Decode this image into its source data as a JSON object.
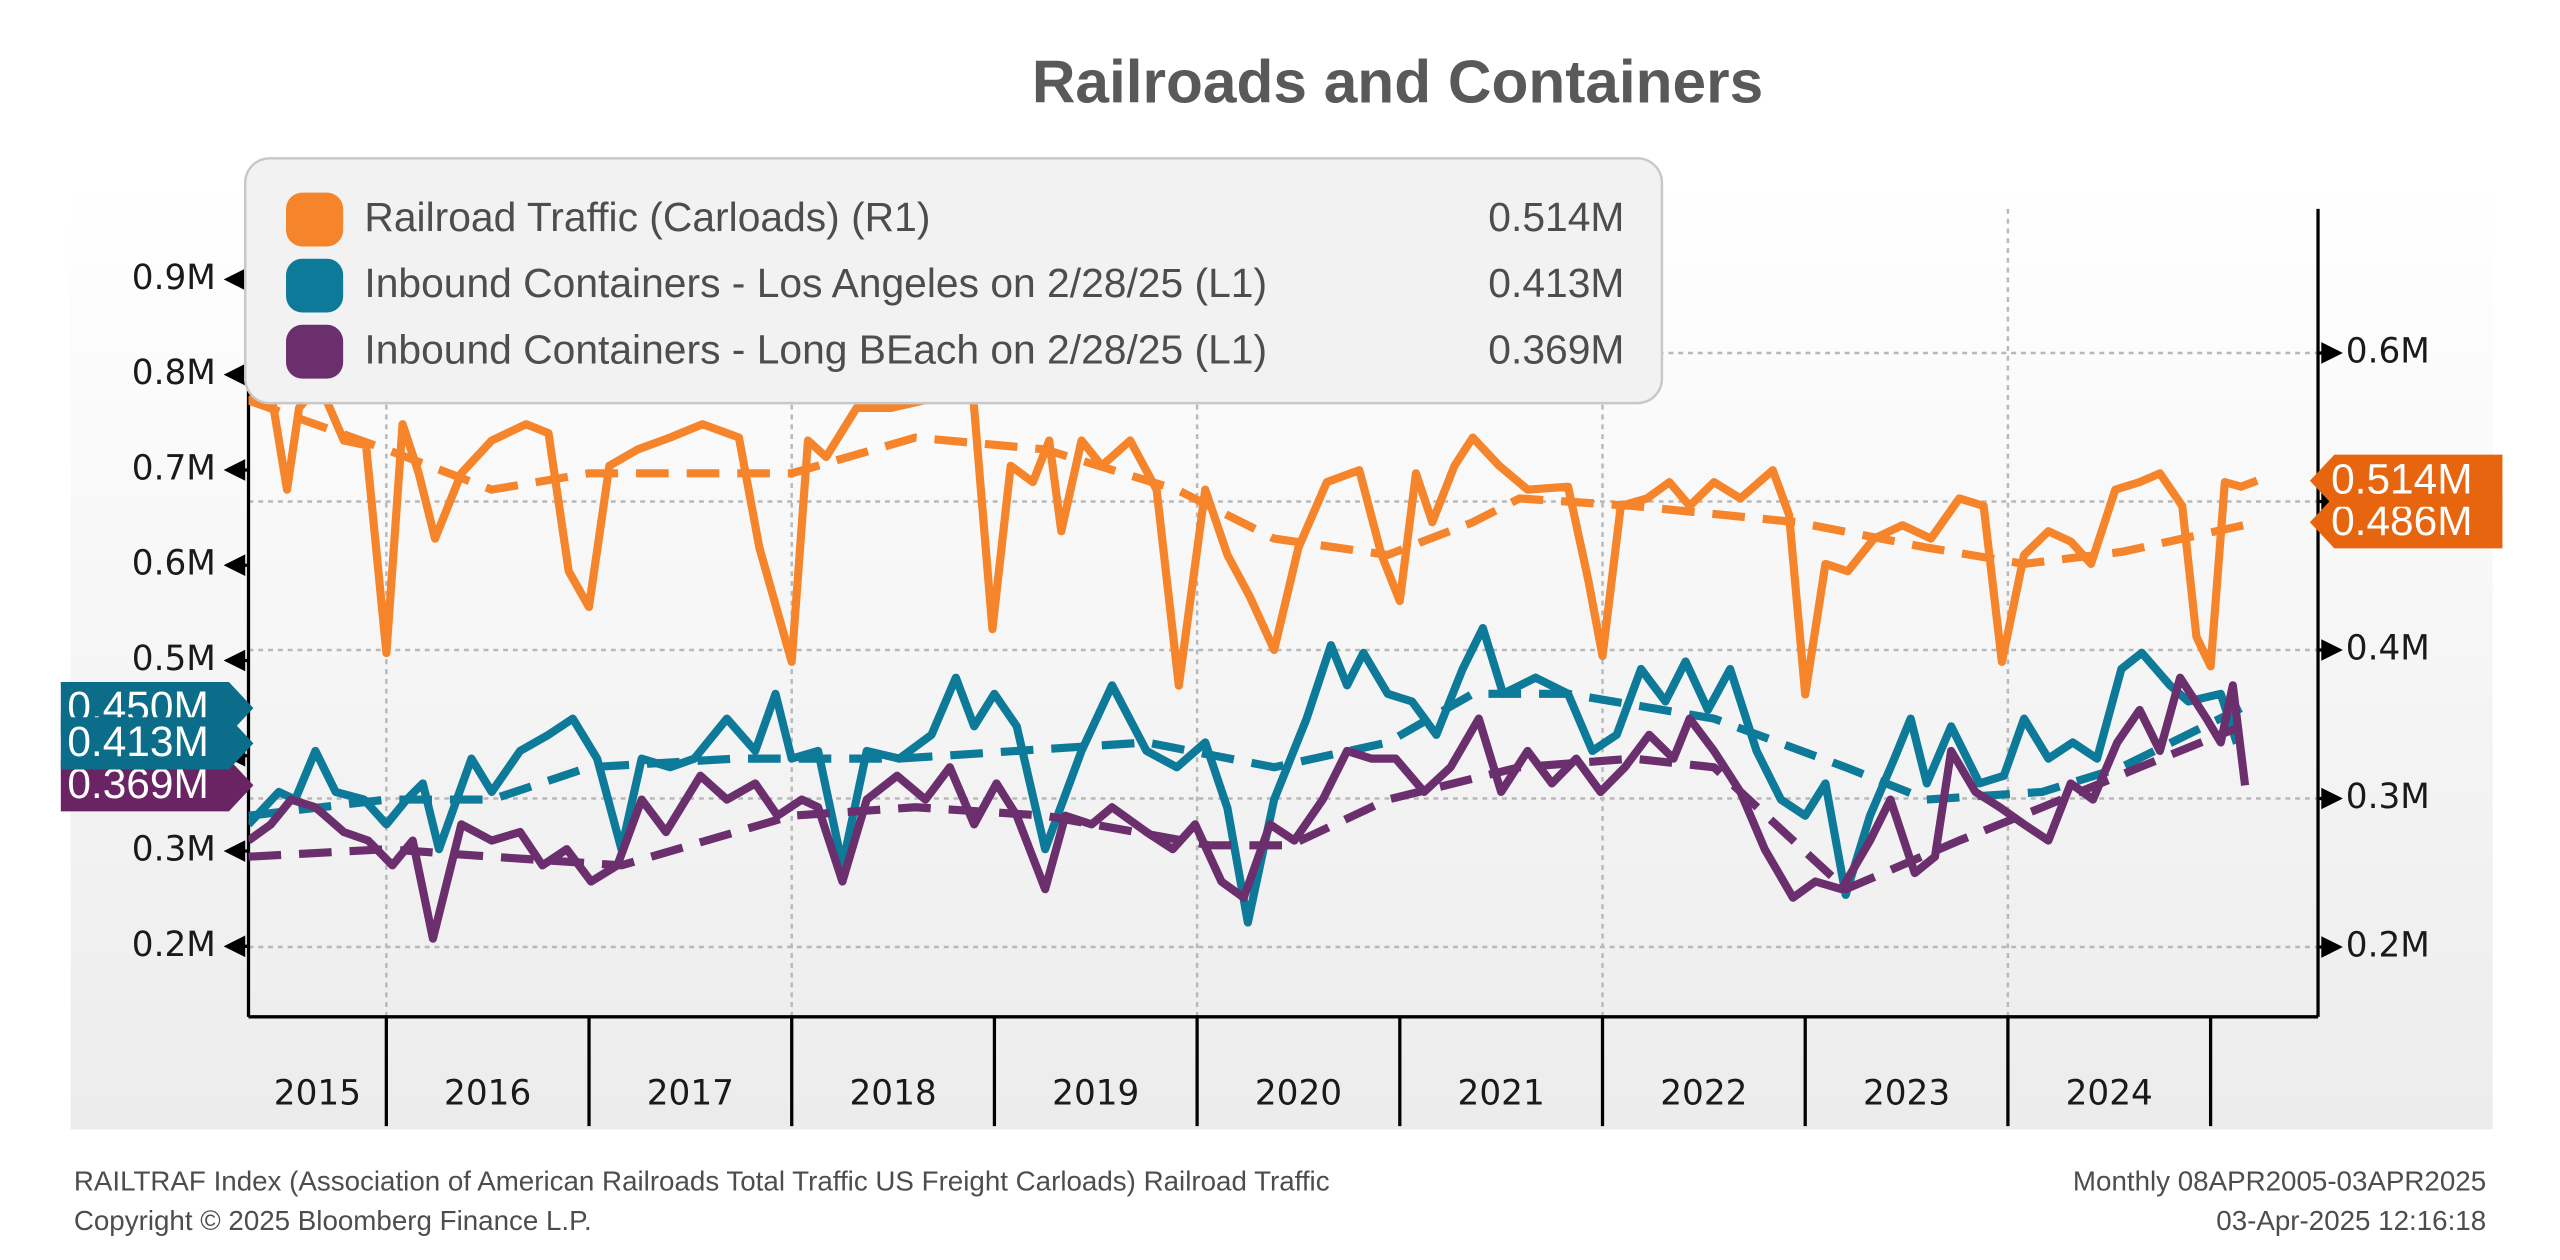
{
  "chart_data": {
    "type": "line",
    "title": "Railroads and Containers",
    "xlim": [
      2015.32,
      2025.53
    ],
    "xticks": [
      2016,
      2017,
      2018,
      2019,
      2020,
      2021,
      2022,
      2023,
      2024,
      2025
    ],
    "xgrid": [
      2016,
      2018,
      2020,
      2022,
      2024
    ],
    "year_labels": [
      2015,
      2016,
      2017,
      2018,
      2019,
      2020,
      2021,
      2022,
      2023,
      2024
    ],
    "ylim": [
      0.126,
      0.974
    ],
    "yticks": [
      {
        "value": 0.2,
        "label": "0.2M"
      },
      {
        "value": 0.3,
        "label": "0.3M"
      },
      {
        "value": 0.4,
        "label": "0.4M"
      },
      {
        "value": 0.5,
        "label": "0.5M"
      },
      {
        "value": 0.6,
        "label": "0.6M"
      },
      {
        "value": 0.7,
        "label": "0.7M"
      },
      {
        "value": 0.8,
        "label": "0.8M"
      },
      {
        "value": 0.9,
        "label": "0.9M"
      }
    ],
    "y2lim": [
      0.153,
      0.697
    ],
    "y2ticks": [
      {
        "value": 0.2,
        "label": "0.2M"
      },
      {
        "value": 0.3,
        "label": "0.3M"
      },
      {
        "value": 0.4,
        "label": "0.4M"
      },
      {
        "value": 0.5,
        "label": "0.5M"
      },
      {
        "value": 0.6,
        "label": "0.6M"
      }
    ],
    "grid": true,
    "legend": "upper left",
    "series": [
      {
        "name": "Railroad Traffic (Carloads) (R1)",
        "legend_value": "0.514M",
        "end_label": "0.514M",
        "label_color": "#e8650f",
        "color": "#f5842a",
        "axis": "y2",
        "dashed": false,
        "x": [
          2015.32,
          2015.43,
          2015.51,
          2015.57,
          2015.67,
          2015.79,
          2015.9,
          2016.0,
          2016.08,
          2016.16,
          2016.24,
          2016.37,
          2016.52,
          2016.69,
          2016.8,
          2016.9,
          2017.0,
          2017.1,
          2017.24,
          2017.4,
          2017.56,
          2017.74,
          2017.84,
          2018.0,
          2018.08,
          2018.17,
          2018.32,
          2018.49,
          2018.65,
          2018.89,
          2018.99,
          2019.08,
          2019.19,
          2019.27,
          2019.33,
          2019.43,
          2019.53,
          2019.67,
          2019.8,
          2019.91,
          2020.04,
          2020.15,
          2020.26,
          2020.38,
          2020.5,
          2020.64,
          2020.8,
          2020.91,
          2021.0,
          2021.08,
          2021.16,
          2021.27,
          2021.36,
          2021.49,
          2021.63,
          2021.83,
          2021.93,
          2022.0,
          2022.09,
          2022.22,
          2022.33,
          2022.43,
          2022.55,
          2022.68,
          2022.84,
          2022.92,
          2023.0,
          2023.1,
          2023.21,
          2023.34,
          2023.48,
          2023.62,
          2023.76,
          2023.88,
          2023.97,
          2024.08,
          2024.2,
          2024.31,
          2024.41,
          2024.53,
          2024.65,
          2024.75,
          2024.86,
          2024.93,
          2025.0,
          2025.07,
          2025.15,
          2025.23
        ],
        "values": [
          0.568,
          0.574,
          0.508,
          0.563,
          0.579,
          0.541,
          0.538,
          0.398,
          0.552,
          0.519,
          0.475,
          0.519,
          0.541,
          0.552,
          0.546,
          0.453,
          0.429,
          0.524,
          0.535,
          0.543,
          0.552,
          0.543,
          0.469,
          0.392,
          0.541,
          0.53,
          0.563,
          0.563,
          0.568,
          0.579,
          0.414,
          0.524,
          0.513,
          0.541,
          0.48,
          0.541,
          0.524,
          0.541,
          0.508,
          0.376,
          0.508,
          0.464,
          0.436,
          0.4,
          0.469,
          0.513,
          0.521,
          0.464,
          0.433,
          0.519,
          0.486,
          0.524,
          0.543,
          0.524,
          0.508,
          0.51,
          0.447,
          0.396,
          0.497,
          0.502,
          0.513,
          0.497,
          0.513,
          0.502,
          0.521,
          0.491,
          0.37,
          0.458,
          0.453,
          0.475,
          0.484,
          0.475,
          0.502,
          0.497,
          0.392,
          0.464,
          0.48,
          0.473,
          0.458,
          0.508,
          0.513,
          0.519,
          0.497,
          0.409,
          0.389,
          0.513,
          0.51,
          0.514
        ]
      },
      {
        "end_label": "0.486M",
        "label_color": "#e8650f",
        "color": "#f5842a",
        "axis": "y2",
        "dashed": true,
        "x": [
          2015.32,
          2016.0,
          2016.52,
          2017.0,
          2018.0,
          2018.61,
          2019.25,
          2019.9,
          2020.38,
          2020.94,
          2021.36,
          2021.59,
          2022.15,
          2022.96,
          2023.6,
          2024.08,
          2024.56,
          2025.23
        ],
        "values": [
          0.568,
          0.535,
          0.508,
          0.519,
          0.519,
          0.543,
          0.535,
          0.508,
          0.475,
          0.464,
          0.486,
          0.502,
          0.497,
          0.486,
          0.469,
          0.458,
          0.466,
          0.486
        ]
      },
      {
        "name": "Inbound Containers - Los Angeles on 2/28/25 (L1)",
        "legend_value": "0.413M",
        "end_label": "0.413M",
        "label_color": "#0b6d8a",
        "color": "#0e7a99",
        "dashed": false,
        "x": [
          2015.32,
          2015.47,
          2015.55,
          2015.65,
          2015.75,
          2015.89,
          2016.0,
          2016.1,
          2016.18,
          2016.26,
          2016.42,
          2016.52,
          2016.66,
          2016.8,
          2016.92,
          2017.04,
          2017.16,
          2017.26,
          2017.4,
          2017.52,
          2017.68,
          2017.82,
          2017.92,
          2018.0,
          2018.13,
          2018.25,
          2018.37,
          2018.53,
          2018.69,
          2018.81,
          2018.9,
          2019.0,
          2019.11,
          2019.25,
          2019.43,
          2019.58,
          2019.75,
          2019.9,
          2020.04,
          2020.15,
          2020.25,
          2020.38,
          2020.54,
          2020.66,
          2020.74,
          2020.82,
          2020.94,
          2021.06,
          2021.18,
          2021.31,
          2021.41,
          2021.51,
          2021.67,
          2021.83,
          2021.95,
          2022.07,
          2022.19,
          2022.31,
          2022.41,
          2022.52,
          2022.63,
          2022.76,
          2022.88,
          2023.0,
          2023.1,
          2023.2,
          2023.32,
          2023.44,
          2023.52,
          2023.6,
          2023.72,
          2023.86,
          2023.98,
          2024.08,
          2024.2,
          2024.32,
          2024.44,
          2024.56,
          2024.66,
          2024.8,
          2024.89,
          2025.05,
          2025.13
        ],
        "values": [
          0.328,
          0.362,
          0.354,
          0.405,
          0.362,
          0.354,
          0.328,
          0.354,
          0.371,
          0.302,
          0.397,
          0.362,
          0.405,
          0.422,
          0.439,
          0.397,
          0.302,
          0.397,
          0.388,
          0.397,
          0.439,
          0.405,
          0.465,
          0.397,
          0.405,
          0.285,
          0.405,
          0.397,
          0.422,
          0.482,
          0.431,
          0.465,
          0.431,
          0.302,
          0.405,
          0.474,
          0.405,
          0.388,
          0.414,
          0.345,
          0.225,
          0.354,
          0.439,
          0.516,
          0.474,
          0.508,
          0.465,
          0.457,
          0.422,
          0.491,
          0.534,
          0.465,
          0.482,
          0.465,
          0.405,
          0.422,
          0.491,
          0.457,
          0.499,
          0.448,
          0.491,
          0.405,
          0.354,
          0.337,
          0.371,
          0.254,
          0.337,
          0.397,
          0.439,
          0.371,
          0.431,
          0.371,
          0.379,
          0.439,
          0.397,
          0.414,
          0.397,
          0.491,
          0.508,
          0.474,
          0.457,
          0.465,
          0.413
        ]
      },
      {
        "end_label": "0.450M",
        "label_color": "#0b6d8a",
        "color": "#0e7a99",
        "dashed": true,
        "x": [
          2015.32,
          2016.0,
          2016.52,
          2017.0,
          2017.72,
          2018.53,
          2019.75,
          2020.38,
          2020.94,
          2021.36,
          2021.83,
          2022.55,
          2023.2,
          2023.6,
          2024.17,
          2024.56,
          2025.15
        ],
        "values": [
          0.337,
          0.354,
          0.354,
          0.388,
          0.397,
          0.397,
          0.414,
          0.388,
          0.414,
          0.465,
          0.465,
          0.439,
          0.388,
          0.354,
          0.362,
          0.388,
          0.45
        ]
      },
      {
        "name": "Inbound Containers - Long BEach on 2/28/25 (L1)",
        "legend_value": "0.369M",
        "end_label": "0.369M",
        "label_color": "#6a2464",
        "color": "#6b2f6e",
        "dashed": false,
        "x": [
          2015.32,
          2015.43,
          2015.53,
          2015.65,
          2015.79,
          2015.91,
          2016.03,
          2016.13,
          2016.23,
          2016.37,
          2016.52,
          2016.66,
          2016.77,
          2016.89,
          2017.01,
          2017.14,
          2017.26,
          2017.38,
          2017.55,
          2017.68,
          2017.82,
          2017.93,
          2018.05,
          2018.13,
          2018.25,
          2018.37,
          2018.52,
          2018.66,
          2018.78,
          2018.9,
          2019.01,
          2019.11,
          2019.25,
          2019.35,
          2019.48,
          2019.58,
          2019.75,
          2019.88,
          2019.99,
          2020.12,
          2020.23,
          2020.36,
          2020.48,
          2020.62,
          2020.74,
          2020.86,
          2020.98,
          2021.12,
          2021.25,
          2021.39,
          2021.5,
          2021.63,
          2021.75,
          2021.87,
          2021.99,
          2022.11,
          2022.23,
          2022.35,
          2022.43,
          2022.55,
          2022.68,
          2022.8,
          2022.94,
          2023.05,
          2023.18,
          2023.32,
          2023.42,
          2023.54,
          2023.64,
          2023.72,
          2023.84,
          2023.96,
          2024.08,
          2024.2,
          2024.31,
          2024.42,
          2024.54,
          2024.65,
          2024.75,
          2024.85,
          2024.98,
          2025.05,
          2025.11,
          2025.17
        ],
        "values": [
          0.311,
          0.328,
          0.354,
          0.346,
          0.32,
          0.311,
          0.285,
          0.311,
          0.208,
          0.328,
          0.311,
          0.32,
          0.285,
          0.302,
          0.268,
          0.285,
          0.354,
          0.32,
          0.379,
          0.354,
          0.371,
          0.337,
          0.354,
          0.346,
          0.268,
          0.354,
          0.379,
          0.354,
          0.388,
          0.328,
          0.371,
          0.337,
          0.26,
          0.337,
          0.328,
          0.346,
          0.32,
          0.302,
          0.328,
          0.268,
          0.251,
          0.328,
          0.311,
          0.354,
          0.405,
          0.397,
          0.397,
          0.362,
          0.388,
          0.439,
          0.362,
          0.405,
          0.371,
          0.397,
          0.362,
          0.388,
          0.422,
          0.397,
          0.439,
          0.405,
          0.362,
          0.302,
          0.251,
          0.268,
          0.26,
          0.311,
          0.354,
          0.277,
          0.294,
          0.405,
          0.362,
          0.346,
          0.328,
          0.311,
          0.371,
          0.354,
          0.414,
          0.448,
          0.405,
          0.482,
          0.439,
          0.414,
          0.474,
          0.369
        ]
      },
      {
        "color": "#6b2f6e",
        "dashed": true,
        "x": [
          2015.32,
          2016.0,
          2016.52,
          2017.16,
          2018.0,
          2018.61,
          2019.25,
          2020.06,
          2020.46,
          2020.94,
          2021.59,
          2022.15,
          2022.55,
          2023.2,
          2023.76,
          2024.17,
          2024.65,
          2025.15
        ],
        "values": [
          0.294,
          0.302,
          0.294,
          0.285,
          0.337,
          0.346,
          0.337,
          0.306,
          0.306,
          0.354,
          0.388,
          0.397,
          0.388,
          0.26,
          0.311,
          0.346,
          0.388,
          0.431
        ]
      }
    ]
  },
  "footer": {
    "source": "RAILTRAF Index (Association of American Railroads Total Traffic US Freight Carloads) Railroad Traffic",
    "copyright": "Copyright © 2025 Bloomberg Finance L.P.",
    "range": "Monthly 08APR2005-03APR2025",
    "timestamp": "03-Apr-2025 12:16:18"
  }
}
